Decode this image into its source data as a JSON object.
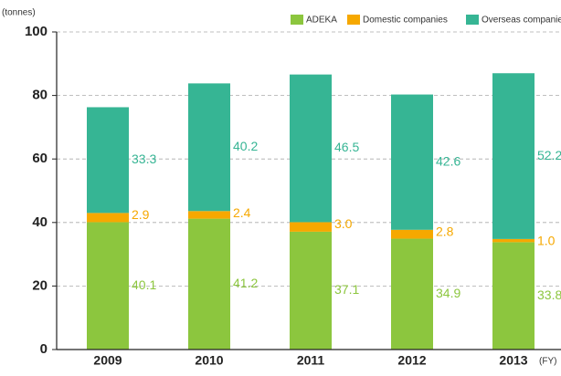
{
  "chart_data": {
    "type": "stacked_bar",
    "y_label": "(tonnes)",
    "x_label": "(FY)",
    "categories": [
      "2009",
      "2010",
      "2011",
      "2012",
      "2013"
    ],
    "series": [
      {
        "name": "ADEKA",
        "color": "#8cc63e",
        "values": [
          40.1,
          41.2,
          37.1,
          34.9,
          33.8
        ],
        "value_labels": [
          "40.1",
          "41.2",
          "37.1",
          "34.9",
          "33.8"
        ]
      },
      {
        "name": "Domestic companies",
        "color": "#f6a800",
        "values": [
          2.9,
          2.4,
          3.0,
          2.8,
          1.0
        ],
        "value_labels": [
          "2.9",
          "2.4",
          "3.0",
          "2.8",
          "1.0"
        ]
      },
      {
        "name": "Overseas companies",
        "color": "#36b594",
        "values": [
          33.3,
          40.2,
          46.5,
          42.6,
          52.2
        ],
        "value_labels": [
          "33.3",
          "40.2",
          "46.5",
          "42.6",
          "52.2"
        ]
      }
    ],
    "ylim": [
      0,
      100
    ],
    "yticks": [
      0,
      20,
      40,
      60,
      80,
      100
    ],
    "grid": true,
    "legend": "top-right"
  }
}
